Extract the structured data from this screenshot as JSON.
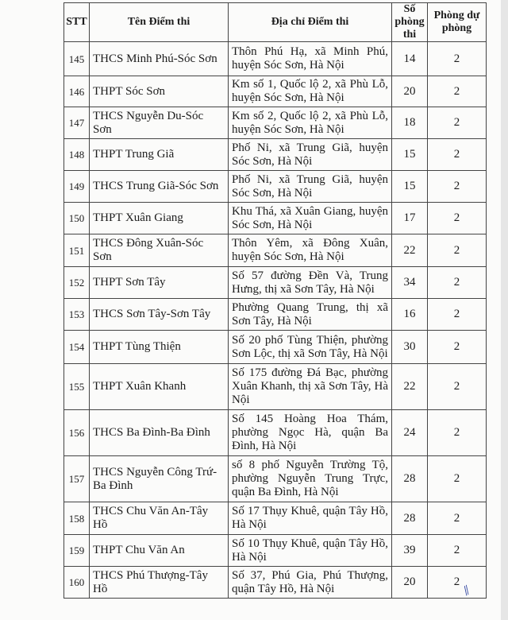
{
  "headers": {
    "stt": "STT",
    "name": "Tên Điểm thi",
    "address": "Địa chỉ Điểm thi",
    "rooms": "Số phòng thi",
    "reserve": "Phòng dự phòng"
  },
  "rows": [
    {
      "stt": "145",
      "name": "THCS Minh Phú-Sóc Sơn",
      "address": "Thôn Phú Hạ, xã Minh Phú, huyện Sóc Sơn, Hà Nội",
      "rooms": "14",
      "reserve": "2"
    },
    {
      "stt": "146",
      "name": "THPT Sóc Sơn",
      "address": "Km số 1, Quốc lộ 2, xã Phù Lỗ, huyện Sóc Sơn, Hà Nội",
      "rooms": "20",
      "reserve": "2"
    },
    {
      "stt": "147",
      "name": "THCS Nguyễn Du-Sóc Sơn",
      "address": "Km số 2, Quốc lộ 2, xã Phù Lỗ, huyện Sóc Sơn, Hà Nội",
      "rooms": "18",
      "reserve": "2"
    },
    {
      "stt": "148",
      "name": "THPT Trung Giã",
      "address": "Phố Ni, xã Trung Giã, huyện Sóc Sơn, Hà Nội",
      "rooms": "15",
      "reserve": "2"
    },
    {
      "stt": "149",
      "name": "THCS Trung Giã-Sóc Sơn",
      "address": "Phố Ni, xã Trung Giã, huyện Sóc Sơn, Hà Nội",
      "rooms": "15",
      "reserve": "2"
    },
    {
      "stt": "150",
      "name": "THPT Xuân Giang",
      "address": "Khu Thá, xã Xuân Giang, huyện Sóc Sơn, Hà Nội",
      "rooms": "17",
      "reserve": "2"
    },
    {
      "stt": "151",
      "name": "THCS Đông Xuân-Sóc Sơn",
      "address": "Thôn Yêm, xã Đông Xuân, huyện Sóc Sơn, Hà Nội",
      "rooms": "22",
      "reserve": "2"
    },
    {
      "stt": "152",
      "name": "THPT Sơn Tây",
      "address": "Số 57 đường Đền Và, Trung Hưng, thị xã Sơn Tây, Hà Nội",
      "rooms": "34",
      "reserve": "2"
    },
    {
      "stt": "153",
      "name": "THCS Sơn Tây-Sơn Tây",
      "address": "Phường Quang Trung, thị xã Sơn Tây, Hà Nội",
      "rooms": "16",
      "reserve": "2"
    },
    {
      "stt": "154",
      "name": "THPT Tùng Thiện",
      "address": "Số 20 phố Tùng Thiện, phường Sơn Lộc, thị xã Sơn Tây, Hà Nội",
      "rooms": "30",
      "reserve": "2"
    },
    {
      "stt": "155",
      "name": "THPT Xuân Khanh",
      "address": "Số 175 đường Đá Bạc, phường Xuân Khanh, thị xã Sơn Tây, Hà Nội",
      "rooms": "22",
      "reserve": "2"
    },
    {
      "stt": "156",
      "name": "THCS Ba Đình-Ba Đình",
      "address": "Số 145 Hoàng Hoa Thám, phường Ngọc Hà, quận Ba Đình, Hà Nội",
      "rooms": "24",
      "reserve": "2"
    },
    {
      "stt": "157",
      "name": "THCS Nguyễn Công Trứ-Ba Đình",
      "address": "số 8 phố Nguyễn Trường Tộ, phường Nguyễn Trung Trực, quận Ba Đình, Hà Nội",
      "rooms": "28",
      "reserve": "2"
    },
    {
      "stt": "158",
      "name": "THCS Chu Văn An-Tây Hồ",
      "address": "Số 17 Thụy Khuê, quận Tây Hồ, Hà Nội",
      "rooms": "28",
      "reserve": "2"
    },
    {
      "stt": "159",
      "name": "THPT Chu Văn An",
      "address": "Số 10 Thụy Khuê, quận Tây Hồ, Hà Nội",
      "rooms": "39",
      "reserve": "2"
    },
    {
      "stt": "160",
      "name": "THCS Phú Thượng-Tây Hồ",
      "address": "Số 37, Phú Gia, Phú Thượng, quận Tây Hồ, Hà Nội",
      "rooms": "20",
      "reserve": "2"
    }
  ]
}
